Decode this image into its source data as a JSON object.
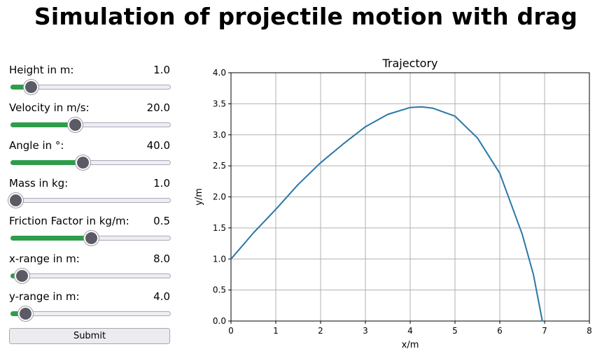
{
  "title": "Simulation of projectile motion with drag",
  "controls": [
    {
      "label": "Height in m:",
      "value": "1.0",
      "fraction": 0.125
    },
    {
      "label": "Velocity in m/s:",
      "value": "20.0",
      "fraction": 0.4
    },
    {
      "label": "Angle in °:",
      "value": "40.0",
      "fraction": 0.45
    },
    {
      "label": "Mass in kg:",
      "value": "1.0",
      "fraction": 0.03
    },
    {
      "label": "Friction Factor in kg/m:",
      "value": "0.5",
      "fraction": 0.5
    },
    {
      "label": "x-range in m:",
      "value": "8.0",
      "fraction": 0.07
    },
    {
      "label": "y-range in m:",
      "value": "4.0",
      "fraction": 0.09
    }
  ],
  "submit_label": "Submit",
  "colors": {
    "slider_fill": "#2e9d4c",
    "slider_thumb": "#5b5b66",
    "line": "#2a77a8",
    "grid": "#b0b0b0"
  },
  "chart_data": {
    "type": "line",
    "title": "Trajectory",
    "xlabel": "x/m",
    "ylabel": "y/m",
    "xlim": [
      0,
      8
    ],
    "ylim": [
      0,
      4
    ],
    "xticks": [
      "0",
      "1",
      "2",
      "3",
      "4",
      "5",
      "6",
      "7",
      "8"
    ],
    "yticks": [
      "0.0",
      "0.5",
      "1.0",
      "1.5",
      "2.0",
      "2.5",
      "3.0",
      "3.5",
      "4.0"
    ],
    "grid": true,
    "series": [
      {
        "x": [
          0,
          0.5,
          1.0,
          1.5,
          2.0,
          2.5,
          3.0,
          3.5,
          4.0,
          4.25,
          4.5,
          5.0,
          5.5,
          6.0,
          6.5,
          6.75,
          6.95
        ],
        "y": [
          1.0,
          1.42,
          1.8,
          2.2,
          2.55,
          2.85,
          3.13,
          3.33,
          3.44,
          3.45,
          3.43,
          3.3,
          2.95,
          2.38,
          1.4,
          0.75,
          0.0
        ]
      }
    ]
  }
}
